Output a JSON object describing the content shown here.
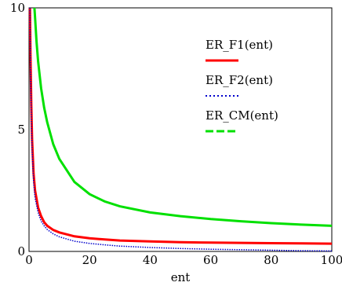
{
  "chart_data": {
    "type": "line",
    "xlabel": "ent",
    "ylabel": "",
    "xlim": [
      0,
      100
    ],
    "ylim": [
      0,
      10
    ],
    "x_ticks": [
      "0",
      "20",
      "40",
      "60",
      "80",
      "100"
    ],
    "y_ticks": [
      "0",
      "5",
      "10"
    ],
    "x_tick_values": [
      0,
      20,
      40,
      60,
      80,
      100
    ],
    "y_tick_values": [
      0,
      5,
      10
    ],
    "grid": false,
    "legend_position": "top-right",
    "series": [
      {
        "name": "ER_F1(ent)",
        "color": "#ff0000",
        "style": "solid",
        "x": [
          0.3,
          0.5,
          0.75,
          1,
          1.5,
          2,
          3,
          4,
          5,
          6,
          8,
          10,
          15,
          20,
          25,
          30,
          40,
          50,
          60,
          70,
          80,
          90,
          100
        ],
        "y": [
          10,
          8.0,
          6.0,
          4.6,
          3.2,
          2.5,
          1.8,
          1.45,
          1.2,
          1.05,
          0.88,
          0.78,
          0.62,
          0.54,
          0.49,
          0.45,
          0.41,
          0.38,
          0.36,
          0.35,
          0.34,
          0.33,
          0.32
        ]
      },
      {
        "name": "ER_F2(ent)",
        "color": "#0000cc",
        "style": "dotted",
        "x": [
          0.3,
          0.5,
          0.75,
          1,
          1.5,
          2,
          3,
          4,
          5,
          6,
          8,
          10,
          15,
          20,
          25,
          30,
          40,
          50,
          60,
          70,
          80,
          90,
          100
        ],
        "y": [
          10,
          7.5,
          5.5,
          4.2,
          2.9,
          2.2,
          1.6,
          1.25,
          1.05,
          0.9,
          0.72,
          0.6,
          0.42,
          0.33,
          0.27,
          0.22,
          0.16,
          0.12,
          0.09,
          0.07,
          0.05,
          0.03,
          0.02
        ]
      },
      {
        "name": "ER_CM(ent)",
        "color": "#00e000",
        "style": "dashed",
        "x": [
          1.8,
          2,
          2.5,
          3,
          4,
          5,
          6,
          8,
          10,
          15,
          20,
          25,
          30,
          40,
          50,
          60,
          70,
          80,
          90,
          100
        ],
        "y": [
          10,
          9.6,
          8.6,
          7.8,
          6.7,
          5.9,
          5.3,
          4.4,
          3.8,
          2.85,
          2.35,
          2.05,
          1.85,
          1.6,
          1.45,
          1.33,
          1.24,
          1.16,
          1.1,
          1.05
        ]
      }
    ]
  }
}
